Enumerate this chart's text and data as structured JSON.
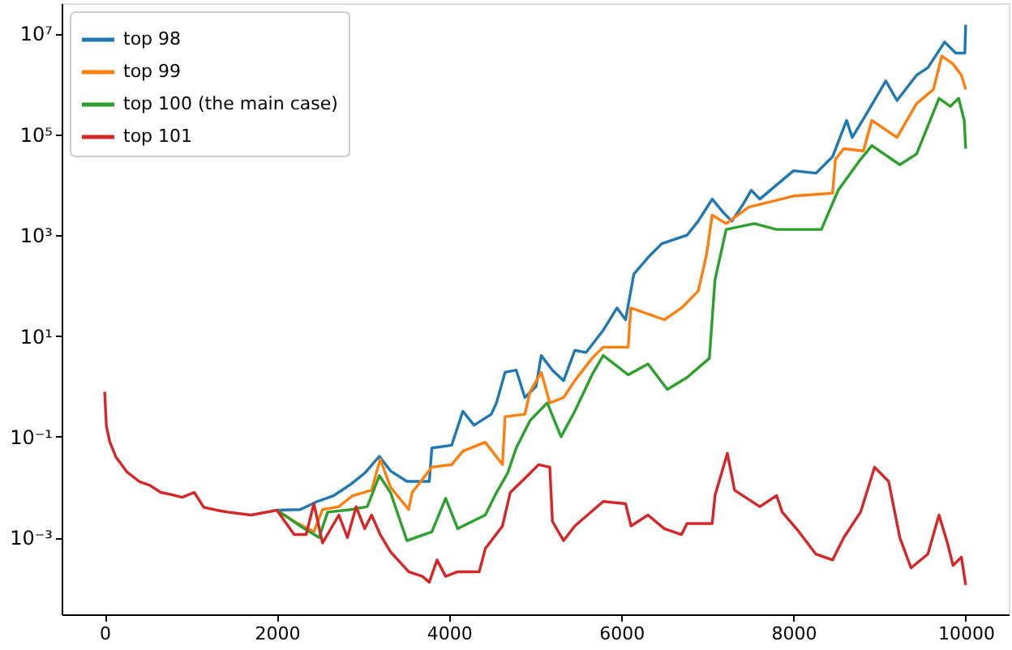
{
  "chart_data": {
    "type": "line",
    "log": "y",
    "grid": false,
    "legend": "top left",
    "marker": "none",
    "line_style": "solid",
    "xlim": [
      -500,
      10500
    ],
    "xticks": [
      0,
      2000,
      4000,
      6000,
      8000,
      10000
    ],
    "ylim": [
      3e-05,
      40000000
    ],
    "yticks": [
      {
        "value": 0.001,
        "label": "10⁻³"
      },
      {
        "value": 0.1,
        "label": "10⁻¹"
      },
      {
        "value": 10,
        "label": "10¹"
      },
      {
        "value": 1000,
        "label": "10³"
      },
      {
        "value": 100000,
        "label": "10⁵"
      },
      {
        "value": 10000000,
        "label": "10⁷"
      }
    ],
    "series": [
      {
        "name": "top 98",
        "color": "#1f77b4",
        "x": [
          2000,
          2270,
          2470,
          2660,
          2860,
          3020,
          3190,
          3320,
          3510,
          3770,
          3800,
          4030,
          4160,
          4290,
          4490,
          4550,
          4650,
          4780,
          4880,
          5010,
          5070,
          5200,
          5330,
          5460,
          5590,
          5790,
          5950,
          6050,
          6146,
          6310,
          6470,
          6763,
          6893,
          7056,
          7186,
          7284,
          7414,
          7510,
          7609,
          8000,
          8260,
          8454,
          8617,
          8682,
          8844,
          9072,
          9202,
          9430,
          9560,
          9755,
          9885,
          9990,
          10000
        ],
        "values": [
          0.0035,
          0.0036,
          0.0052,
          0.0068,
          0.0115,
          0.019,
          0.041,
          0.021,
          0.013,
          0.013,
          0.06,
          0.068,
          0.32,
          0.17,
          0.28,
          0.47,
          1.9,
          2.1,
          0.6,
          1.0,
          4.1,
          2.1,
          1.3,
          5.2,
          4.7,
          13,
          36,
          21,
          170,
          360,
          680,
          1000,
          1900,
          5200,
          2800,
          1900,
          4100,
          7800,
          5200,
          19000,
          17000,
          36000,
          190000,
          87000,
          250000,
          1150000,
          470000,
          1500000,
          2100000,
          6800000,
          4100000,
          4100000,
          15000000
        ]
      },
      {
        "name": "top 99",
        "color": "#ff7f0e",
        "x": [
          2000,
          2200,
          2430,
          2530,
          2720,
          2880,
          3100,
          3200,
          3320,
          3530,
          3570,
          3800,
          4030,
          4160,
          4420,
          4620,
          4650,
          4880,
          4940,
          5070,
          5170,
          5330,
          5460,
          5660,
          5790,
          6080,
          6110,
          6500,
          6700,
          6893,
          6990,
          7056,
          7218,
          7479,
          8000,
          8454,
          8487,
          8584,
          8812,
          8910,
          9202,
          9430,
          9625,
          9722,
          9853,
          9950,
          10000
        ],
        "values": [
          0.0035,
          0.0021,
          0.0013,
          0.0036,
          0.0041,
          0.0068,
          0.0087,
          0.036,
          0.01,
          0.0036,
          0.0078,
          0.025,
          0.028,
          0.052,
          0.078,
          0.028,
          0.25,
          0.28,
          0.78,
          1.9,
          0.47,
          0.6,
          1.3,
          3.6,
          6.0,
          6.0,
          36,
          21,
          36,
          78,
          410,
          2500,
          1700,
          3600,
          6000,
          6800,
          32000,
          52000,
          47000,
          190000,
          87000,
          410000,
          780000,
          3600000,
          2500000,
          1500000,
          780000
        ]
      },
      {
        "name": "top 100 (the main case)",
        "color": "#2ca02c",
        "x": [
          2000,
          2270,
          2490,
          2590,
          2860,
          3050,
          3190,
          3320,
          3510,
          3800,
          3960,
          4100,
          4420,
          4550,
          4680,
          4780,
          4940,
          5140,
          5300,
          5460,
          5660,
          5790,
          6080,
          6310,
          6535,
          6763,
          7023,
          7088,
          7218,
          7544,
          7804,
          8324,
          8519,
          8779,
          8910,
          9235,
          9430,
          9690,
          9820,
          9918,
          9983,
          10000
        ],
        "values": [
          0.0035,
          0.0017,
          0.001,
          0.0032,
          0.0036,
          0.0041,
          0.017,
          0.0078,
          0.00087,
          0.0013,
          0.006,
          0.0015,
          0.0028,
          0.0078,
          0.019,
          0.06,
          0.21,
          0.47,
          0.1,
          0.32,
          1.7,
          4.1,
          1.7,
          2.8,
          0.87,
          1.5,
          3.6,
          130,
          1300,
          1700,
          1300,
          1300,
          7800,
          32000,
          60000,
          25000,
          41000,
          520000,
          360000,
          520000,
          190000,
          52000
        ]
      },
      {
        "name": "top 101",
        "color": "#d62728",
        "x": [
          0,
          20,
          60,
          130,
          260,
          400,
          520,
          650,
          780,
          900,
          1040,
          1150,
          1300,
          1430,
          1700,
          2000,
          2200,
          2340,
          2430,
          2530,
          2720,
          2820,
          2920,
          3020,
          3100,
          3200,
          3320,
          3530,
          3690,
          3770,
          3860,
          3960,
          4100,
          4350,
          4420,
          4620,
          4710,
          4880,
          5040,
          5170,
          5200,
          5330,
          5460,
          5790,
          6050,
          6113,
          6310,
          6500,
          6700,
          6763,
          7056,
          7088,
          7232,
          7316,
          7609,
          7804,
          7869,
          8064,
          8260,
          8454,
          8584,
          8779,
          8942,
          9105,
          9235,
          9365,
          9560,
          9690,
          9788,
          9853,
          9950,
          10000
        ],
        "values": [
          0.78,
          0.16,
          0.079,
          0.04,
          0.02,
          0.013,
          0.011,
          0.0079,
          0.0071,
          0.0063,
          0.0079,
          0.004,
          0.0035,
          0.0032,
          0.0028,
          0.0035,
          0.00115,
          0.00115,
          0.0047,
          0.00078,
          0.0028,
          0.001,
          0.0041,
          0.0015,
          0.0028,
          0.00115,
          0.00052,
          0.00021,
          0.00017,
          0.00013,
          0.00036,
          0.00017,
          0.00021,
          0.00021,
          0.0006,
          0.0017,
          0.0078,
          0.015,
          0.028,
          0.025,
          0.0021,
          0.00087,
          0.0017,
          0.0052,
          0.0047,
          0.0017,
          0.0028,
          0.0015,
          0.00115,
          0.0019,
          0.0019,
          0.0068,
          0.047,
          0.0087,
          0.0041,
          0.0068,
          0.0032,
          0.0013,
          0.00047,
          0.00036,
          0.001,
          0.0032,
          0.025,
          0.013,
          0.001,
          0.00025,
          0.00047,
          0.0028,
          0.00078,
          0.00028,
          0.00041,
          0.000115
        ]
      }
    ]
  }
}
